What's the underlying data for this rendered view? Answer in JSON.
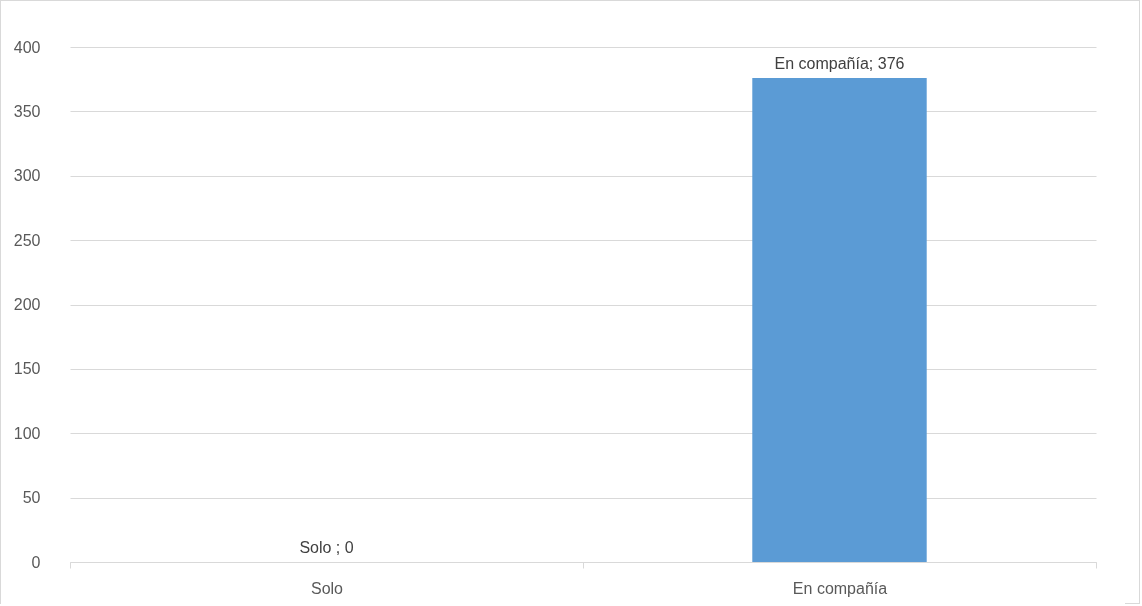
{
  "chart_data": {
    "type": "bar",
    "categories": [
      "Solo",
      "En compañía"
    ],
    "values": [
      0,
      376
    ],
    "value_labels": [
      "Solo ; 0",
      "En compañía; 376"
    ],
    "color": "#5b9bd5",
    "ylim": [
      0,
      400
    ],
    "yticks": [
      0,
      50,
      100,
      150,
      200,
      250,
      300,
      350,
      400
    ],
    "grid": "y"
  }
}
